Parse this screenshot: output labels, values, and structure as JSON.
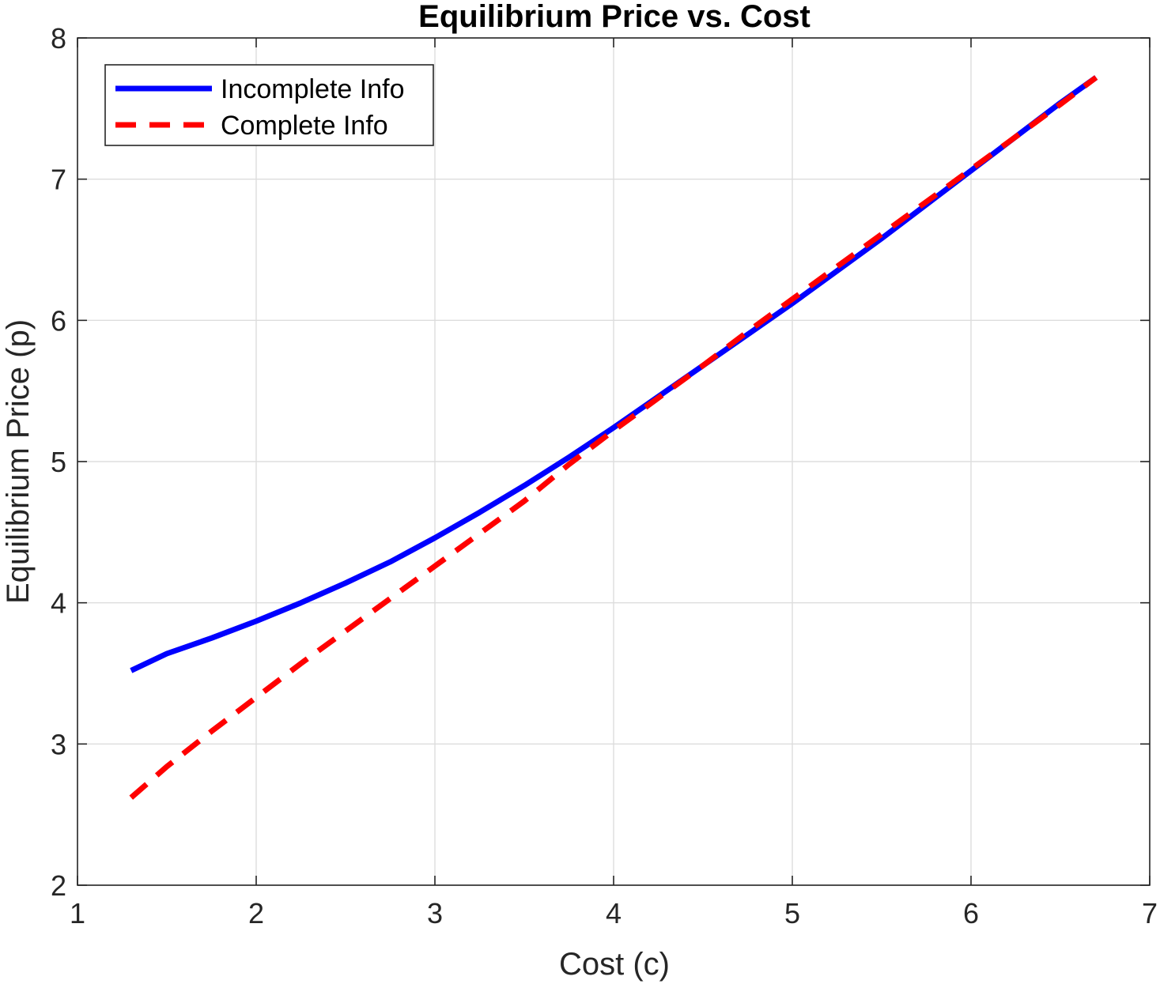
{
  "chart_data": {
    "type": "line",
    "title": "Equilibrium Price vs. Cost",
    "xlabel": "Cost (c)",
    "ylabel": "Equilibrium Price (p)",
    "xlim": [
      1,
      7
    ],
    "ylim": [
      2,
      8
    ],
    "xticks": [
      1,
      2,
      3,
      4,
      5,
      6,
      7
    ],
    "yticks": [
      2,
      3,
      4,
      5,
      6,
      7,
      8
    ],
    "grid": true,
    "legend_position": "top-left",
    "series": [
      {
        "name": "Incomplete Info",
        "color": "#0000ff",
        "style": "solid",
        "x": [
          1.3,
          1.5,
          1.75,
          2.0,
          2.25,
          2.5,
          2.75,
          3.0,
          3.25,
          3.5,
          3.75,
          4.0,
          4.25,
          4.5,
          4.75,
          5.0,
          5.25,
          5.5,
          5.75,
          6.0,
          6.25,
          6.5,
          6.7
        ],
        "y": [
          3.52,
          3.64,
          3.75,
          3.87,
          4.0,
          4.14,
          4.29,
          4.46,
          4.64,
          4.83,
          5.03,
          5.24,
          5.46,
          5.68,
          5.9,
          6.12,
          6.35,
          6.58,
          6.82,
          7.06,
          7.3,
          7.54,
          7.72
        ]
      },
      {
        "name": "Complete Info",
        "color": "#ff0000",
        "style": "dashed",
        "x": [
          1.3,
          1.5,
          1.75,
          2.0,
          2.25,
          2.5,
          2.75,
          3.0,
          3.25,
          3.5,
          3.75,
          4.0,
          4.25,
          4.5,
          4.75,
          5.0,
          5.25,
          5.5,
          5.75,
          6.0,
          6.25,
          6.5,
          6.7
        ],
        "y": [
          2.62,
          2.84,
          3.09,
          3.33,
          3.57,
          3.8,
          4.03,
          4.26,
          4.49,
          4.72,
          4.98,
          5.22,
          5.45,
          5.68,
          5.92,
          6.15,
          6.38,
          6.61,
          6.84,
          7.07,
          7.3,
          7.53,
          7.72
        ]
      }
    ]
  }
}
